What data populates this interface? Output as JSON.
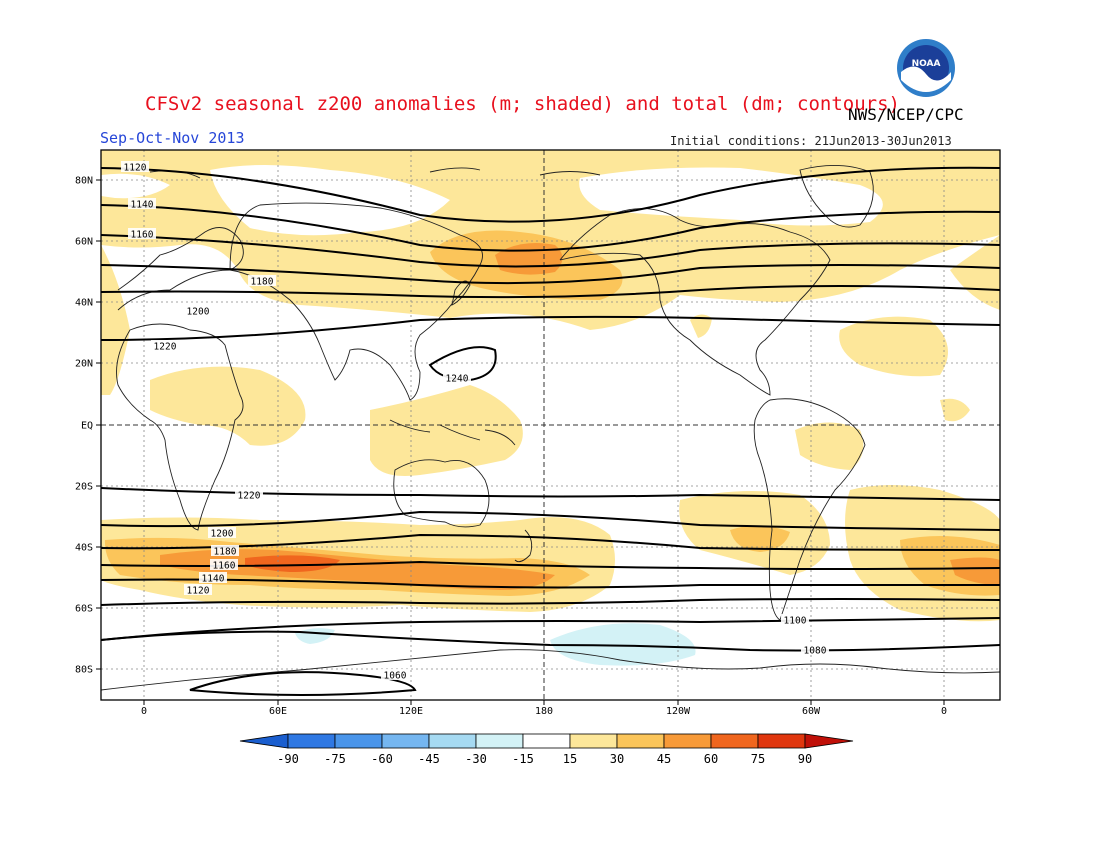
{
  "header": {
    "title": "CFSv2 seasonal z200 anomalies (m; shaded) and total (dm; contours)",
    "agency": "NWS/NCEP/CPC",
    "season": "Sep-Oct-Nov 2013",
    "initial_conditions": "Initial conditions: 21Jun2013-30Jun2013",
    "logo_text": "NOAA"
  },
  "map": {
    "lat_ticks": [
      "80N",
      "60N",
      "40N",
      "20N",
      "EQ",
      "20S",
      "40S",
      "60S",
      "80S"
    ],
    "lon_ticks": [
      "0",
      "60E",
      "120E",
      "180",
      "120W",
      "60W",
      "0"
    ],
    "contour_labels": [
      {
        "text": "1120",
        "band": "north"
      },
      {
        "text": "1140",
        "band": "north"
      },
      {
        "text": "1160",
        "band": "north"
      },
      {
        "text": "1180",
        "band": "north"
      },
      {
        "text": "1200",
        "band": "north"
      },
      {
        "text": "1220",
        "band": "north"
      },
      {
        "text": "1240",
        "band": "subtropical-high"
      },
      {
        "text": "1220",
        "band": "south"
      },
      {
        "text": "1200",
        "band": "south"
      },
      {
        "text": "1180",
        "band": "south"
      },
      {
        "text": "1160",
        "band": "south"
      },
      {
        "text": "1140",
        "band": "south"
      },
      {
        "text": "1120",
        "band": "south"
      },
      {
        "text": "1100",
        "band": "south"
      },
      {
        "text": "1080",
        "band": "south"
      },
      {
        "text": "1060",
        "band": "south"
      }
    ]
  },
  "colorbar": {
    "labels": [
      "-90",
      "-75",
      "-60",
      "-45",
      "-30",
      "-15",
      "15",
      "30",
      "45",
      "60",
      "75",
      "90"
    ],
    "colors": [
      "#1a5ecf",
      "#2f78e3",
      "#4a95ea",
      "#75b6f0",
      "#a6daf2",
      "#d3f2f6",
      "#ffffff",
      "#fde79a",
      "#fbc55a",
      "#f79a38",
      "#f0661e",
      "#e0360e",
      "#c01008"
    ]
  }
}
